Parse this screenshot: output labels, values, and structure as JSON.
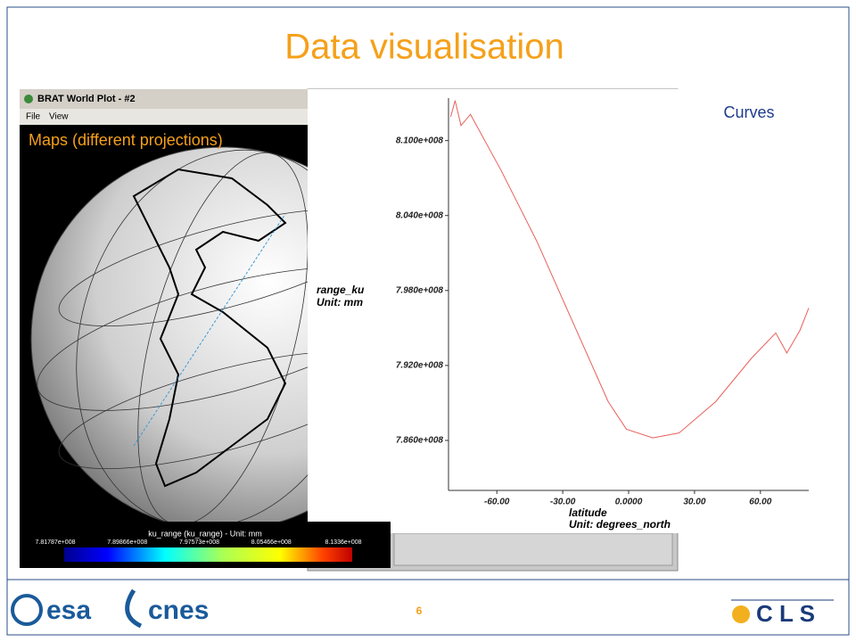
{
  "title": "Data visualisation",
  "page_number": "6",
  "map_window": {
    "title": "BRAT World Plot - #2",
    "menu": [
      "File",
      "View"
    ],
    "caption": "Maps (different projections)",
    "colorbar_title": "ku_range (ku_range) - Unit: mm",
    "colorbar_labels": [
      "7.81787e+008",
      "7.89866e+008",
      "7.97573e+008",
      "8.05466e+008",
      "8.1336e+008"
    ]
  },
  "curves_label": "Curves",
  "chart_data": {
    "type": "line",
    "y_label": "range_ku",
    "y_unit": "Unit: mm",
    "x_label": "latitude",
    "x_unit": "Unit: degrees_north",
    "x": [
      -81,
      -79,
      -76.3,
      -72,
      -58,
      -41.7,
      -25.5,
      -9.3,
      -1,
      11,
      23,
      39.6,
      56,
      67,
      72,
      78,
      82
    ],
    "series": [
      {
        "color": "#e8605c",
        "values": [
          811900000,
          813200000,
          811200000,
          812100000,
          807600000,
          801900000,
          795500000,
          789100000,
          786900000,
          786200000,
          786600000,
          789100000,
          792600000,
          794600000,
          793000000,
          794800000,
          796600000
        ]
      }
    ],
    "xlim": [
      -82,
      82
    ],
    "ylim": [
      782000000,
      813400000
    ],
    "xticks": [
      {
        "value": -60,
        "label": "-60.00"
      },
      {
        "value": -30,
        "label": "-30.00"
      },
      {
        "value": 0,
        "label": "0.0000"
      },
      {
        "value": 30,
        "label": "30.00"
      },
      {
        "value": 60,
        "label": "60.00"
      }
    ],
    "yticks": [
      {
        "value": 786000000,
        "label": "7.860e+008"
      },
      {
        "value": 792000000,
        "label": "7.920e+008"
      },
      {
        "value": 798000000,
        "label": "7.980e+008"
      },
      {
        "value": 804000000,
        "label": "8.040e+008"
      },
      {
        "value": 810000000,
        "label": "8.100e+008"
      }
    ]
  },
  "logos": [
    "esa",
    "cnes",
    "C L S"
  ]
}
